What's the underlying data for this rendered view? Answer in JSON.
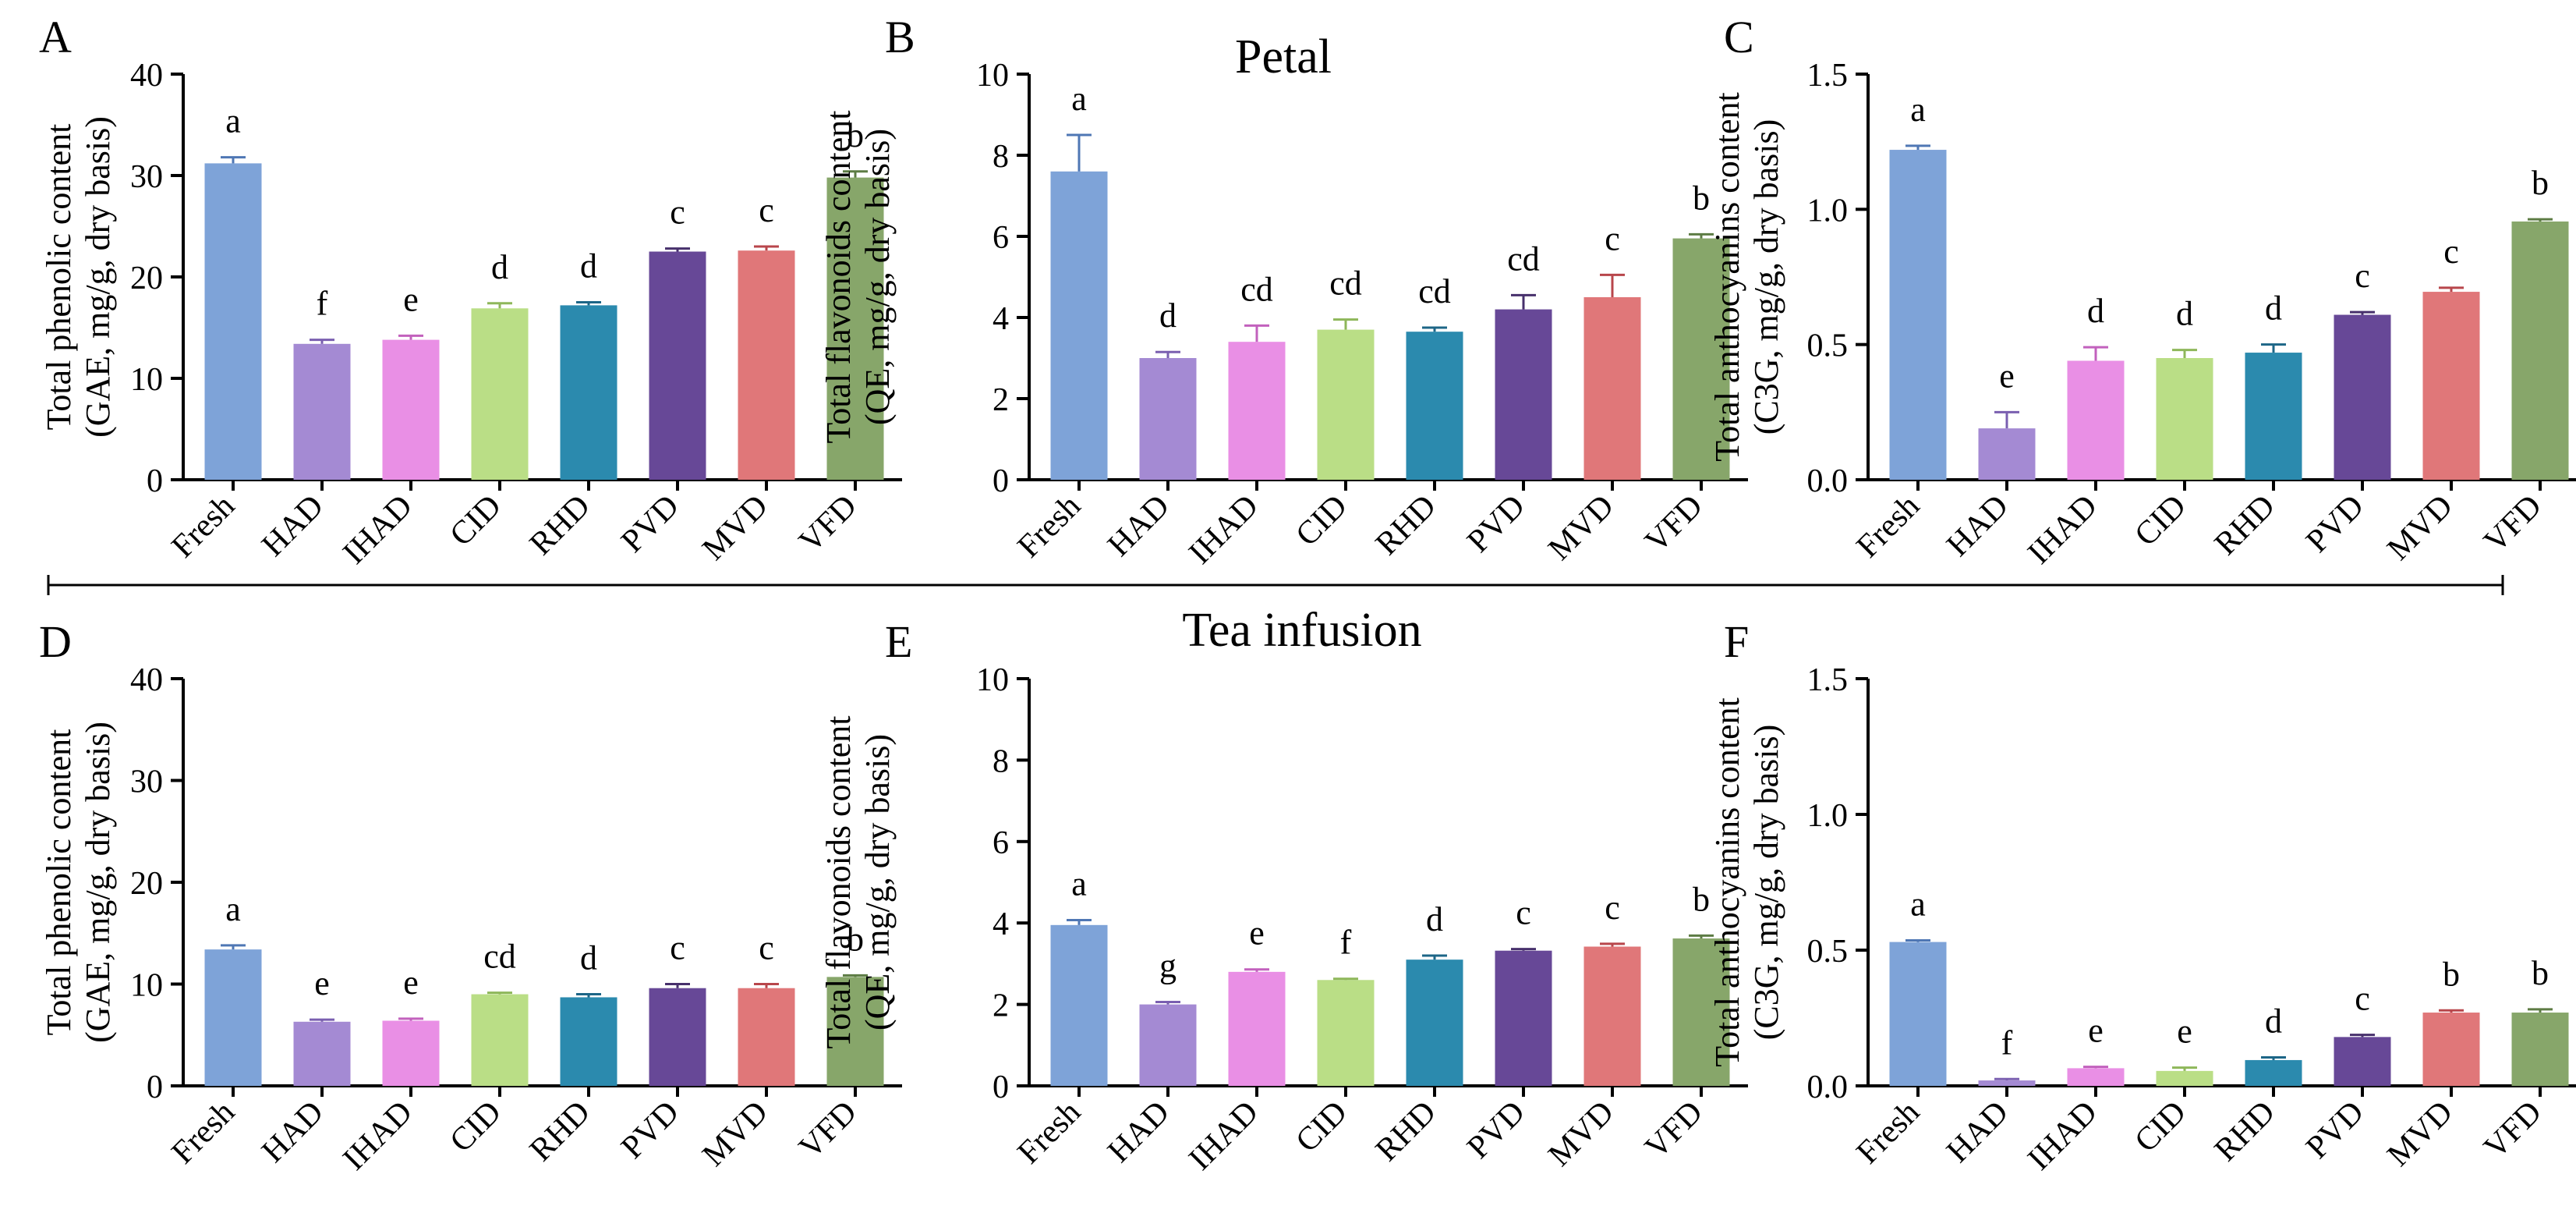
{
  "figure": {
    "section_titles": {
      "top": "Petal",
      "bottom": "Tea infusion"
    }
  },
  "chart_data": [
    {
      "panel": "A",
      "type": "bar",
      "section": "Petal",
      "ylabel": "Total phenolic content",
      "ylabel2": "(GAE, mg/g, dry basis)",
      "categories": [
        "Fresh",
        "HAD",
        "IHAD",
        "CID",
        "RHD",
        "PVD",
        "MVD",
        "VFD"
      ],
      "values": [
        31.2,
        13.4,
        13.8,
        16.9,
        17.2,
        22.5,
        22.6,
        29.8
      ],
      "errors": [
        0.6,
        0.4,
        0.4,
        0.5,
        0.3,
        0.3,
        0.4,
        0.6
      ],
      "letters": [
        "a",
        "f",
        "e",
        "d",
        "d",
        "c",
        "c",
        "b"
      ],
      "ylim": [
        0,
        40
      ],
      "yticks": [
        "0",
        "10",
        "20",
        "30",
        "40"
      ]
    },
    {
      "panel": "B",
      "type": "bar",
      "section": "Petal",
      "ylabel": "Total flavonoids content",
      "ylabel2": "(QE, mg/g, dry basis)",
      "categories": [
        "Fresh",
        "HAD",
        "IHAD",
        "CID",
        "RHD",
        "PVD",
        "MVD",
        "VFD"
      ],
      "values": [
        7.6,
        3.0,
        3.4,
        3.7,
        3.65,
        4.2,
        4.5,
        5.95
      ],
      "errors": [
        0.9,
        0.15,
        0.4,
        0.25,
        0.1,
        0.35,
        0.55,
        0.1
      ],
      "letters": [
        "a",
        "d",
        "cd",
        "cd",
        "cd",
        "cd",
        "c",
        "b"
      ],
      "ylim": [
        0,
        10
      ],
      "yticks": [
        "0",
        "2",
        "4",
        "6",
        "8",
        "10"
      ]
    },
    {
      "panel": "C",
      "type": "bar",
      "section": "Petal",
      "ylabel": "Total anthocyanins content",
      "ylabel2": "(C3G, mg/g, dry basis)",
      "categories": [
        "Fresh",
        "HAD",
        "IHAD",
        "CID",
        "RHD",
        "PVD",
        "MVD",
        "VFD"
      ],
      "values": [
        1.22,
        0.19,
        0.44,
        0.45,
        0.47,
        0.61,
        0.695,
        0.955
      ],
      "errors": [
        0.015,
        0.06,
        0.05,
        0.03,
        0.03,
        0.01,
        0.015,
        0.008
      ],
      "letters": [
        "a",
        "e",
        "d",
        "d",
        "d",
        "c",
        "c",
        "b"
      ],
      "ylim": [
        0,
        1.5
      ],
      "yticks": [
        "0.0",
        "0.5",
        "1.0",
        "1.5"
      ]
    },
    {
      "panel": "D",
      "type": "bar",
      "section": "Tea infusion",
      "ylabel": "Total phenolic content",
      "ylabel2": "(GAE, mg/g, dry basis)",
      "categories": [
        "Fresh",
        "HAD",
        "IHAD",
        "CID",
        "RHD",
        "PVD",
        "MVD",
        "VFD"
      ],
      "values": [
        13.4,
        6.3,
        6.4,
        9.0,
        8.7,
        9.6,
        9.6,
        10.7
      ],
      "errors": [
        0.4,
        0.2,
        0.2,
        0.15,
        0.3,
        0.4,
        0.4,
        0.15
      ],
      "letters": [
        "a",
        "e",
        "e",
        "cd",
        "d",
        "c",
        "c",
        "b"
      ],
      "ylim": [
        0,
        40
      ],
      "yticks": [
        "0",
        "10",
        "20",
        "30",
        "40"
      ]
    },
    {
      "panel": "E",
      "type": "bar",
      "section": "Tea infusion",
      "ylabel": "Total flavonoids content",
      "ylabel2": "(QE, mg/g, dry basis)",
      "categories": [
        "Fresh",
        "HAD",
        "IHAD",
        "CID",
        "RHD",
        "PVD",
        "MVD",
        "VFD"
      ],
      "values": [
        3.95,
        2.0,
        2.8,
        2.6,
        3.1,
        3.32,
        3.42,
        3.62
      ],
      "errors": [
        0.12,
        0.06,
        0.06,
        0.03,
        0.1,
        0.04,
        0.07,
        0.07
      ],
      "letters": [
        "a",
        "g",
        "e",
        "f",
        "d",
        "c",
        "c",
        "b"
      ],
      "ylim": [
        0,
        10
      ],
      "yticks": [
        "0",
        "2",
        "4",
        "6",
        "8",
        "10"
      ]
    },
    {
      "panel": "F",
      "type": "bar",
      "section": "Tea infusion",
      "ylabel": "Total anthocyanins content",
      "ylabel2": "(C3G, mg/g, dry basis)",
      "categories": [
        "Fresh",
        "HAD",
        "IHAD",
        "CID",
        "RHD",
        "PVD",
        "MVD",
        "VFD"
      ],
      "values": [
        0.53,
        0.02,
        0.065,
        0.055,
        0.095,
        0.18,
        0.27,
        0.27
      ],
      "errors": [
        0.006,
        0.005,
        0.005,
        0.012,
        0.01,
        0.008,
        0.008,
        0.012
      ],
      "letters": [
        "a",
        "f",
        "e",
        "e",
        "d",
        "c",
        "b",
        "b"
      ],
      "ylim": [
        0,
        1.5
      ],
      "yticks": [
        "0.0",
        "0.5",
        "1.0",
        "1.5"
      ]
    }
  ],
  "colors": {
    "bars": [
      "#7ea3d8",
      "#a48ad3",
      "#e98fe5",
      "#bade86",
      "#2b8aae",
      "#674897",
      "#e07779",
      "#87a66a"
    ],
    "errors": [
      "#4f77b4",
      "#7a5fb0",
      "#c261bd",
      "#8eb75a",
      "#1d6687",
      "#47306c",
      "#b8464b",
      "#5d7c44"
    ],
    "axis": "#000000"
  }
}
